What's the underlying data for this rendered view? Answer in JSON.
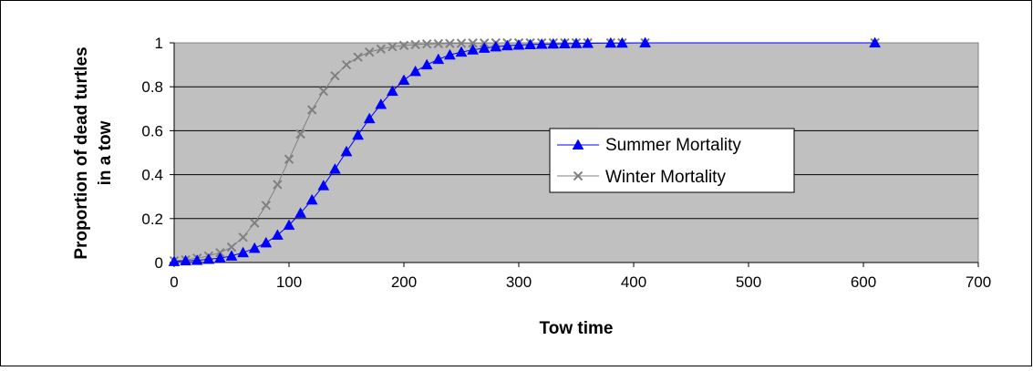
{
  "chart_data": {
    "type": "line",
    "xlabel": "Tow time",
    "ylabel_lines": [
      "Proportion of dead turtles",
      "in a tow"
    ],
    "xlim": [
      0,
      700
    ],
    "ylim": [
      0,
      1
    ],
    "xticks": [
      "0",
      "100",
      "200",
      "300",
      "400",
      "500",
      "600",
      "700"
    ],
    "yticks": [
      "0",
      "0.2",
      "0.4",
      "0.6",
      "0.8",
      "1"
    ],
    "grid": "horizontal",
    "plot_background": "#c0c0c0",
    "legend_position": "center-right",
    "series": [
      {
        "name": "Summer Mortality",
        "color": "#0000ff",
        "marker": "triangle",
        "x": [
          0,
          10,
          20,
          30,
          40,
          50,
          60,
          70,
          80,
          90,
          100,
          110,
          120,
          130,
          140,
          150,
          160,
          170,
          180,
          190,
          200,
          210,
          220,
          230,
          240,
          250,
          260,
          270,
          280,
          290,
          300,
          310,
          320,
          330,
          340,
          350,
          360,
          380,
          390,
          410,
          610
        ],
        "y": [
          0.005,
          0.008,
          0.01,
          0.015,
          0.02,
          0.03,
          0.045,
          0.065,
          0.09,
          0.125,
          0.17,
          0.225,
          0.285,
          0.35,
          0.425,
          0.505,
          0.58,
          0.655,
          0.72,
          0.78,
          0.83,
          0.87,
          0.9,
          0.925,
          0.945,
          0.958,
          0.968,
          0.976,
          0.982,
          0.987,
          0.99,
          0.992,
          0.994,
          0.995,
          0.996,
          0.997,
          0.998,
          0.999,
          0.999,
          1.0,
          1.0
        ]
      },
      {
        "name": "Winter Mortality",
        "color": "#808080",
        "marker": "x",
        "x": [
          0,
          10,
          20,
          30,
          40,
          50,
          60,
          70,
          80,
          90,
          100,
          110,
          120,
          130,
          140,
          150,
          160,
          170,
          180,
          190,
          200,
          210,
          220,
          230,
          240,
          250,
          260,
          270,
          280,
          290,
          300,
          310,
          320,
          330,
          340,
          350,
          360,
          380,
          390,
          410,
          610
        ],
        "y": [
          0.008,
          0.012,
          0.02,
          0.03,
          0.045,
          0.07,
          0.115,
          0.18,
          0.26,
          0.355,
          0.47,
          0.585,
          0.695,
          0.78,
          0.85,
          0.9,
          0.935,
          0.958,
          0.972,
          0.982,
          0.988,
          0.992,
          0.995,
          0.996,
          0.997,
          0.998,
          0.999,
          0.999,
          1.0,
          1.0,
          1.0,
          1.0,
          1.0,
          1.0,
          1.0,
          1.0,
          1.0,
          1.0,
          1.0,
          1.0,
          1.0
        ]
      }
    ]
  }
}
